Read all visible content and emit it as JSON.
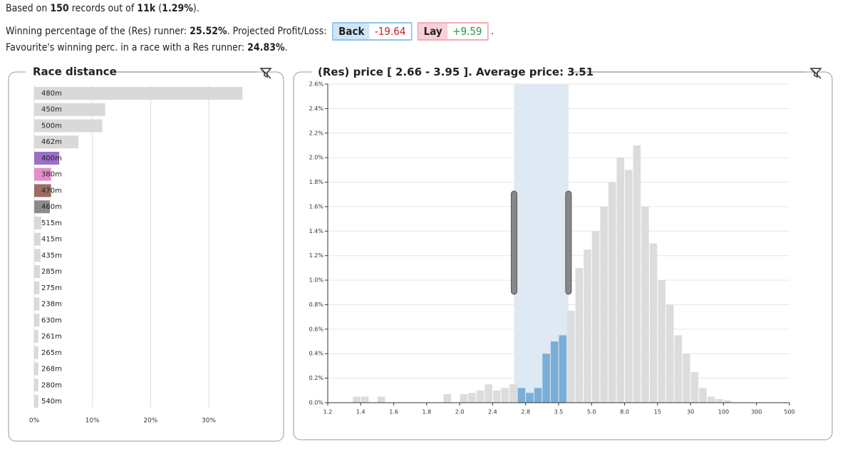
{
  "header": {
    "lines": [
      [
        {
          "text": "Based on "
        },
        {
          "text": "150",
          "bold": true
        },
        {
          "text": " records out of "
        },
        {
          "text": "11k",
          "bold": true
        },
        {
          "text": " ("
        },
        {
          "text": "1.29%",
          "bold": true
        },
        {
          "text": ")."
        }
      ],
      [
        {
          "text": "Winning percentage of the (Res) runner: "
        },
        {
          "text": "25.52%",
          "bold": true
        },
        {
          "text": ". Projected Profit/Loss: "
        }
      ],
      [
        {
          "text": "Favourite's winning perc. in a race with a Res runner: "
        },
        {
          "text": "24.83%",
          "bold": true
        },
        {
          "text": "."
        }
      ]
    ],
    "back": {
      "label": "Back",
      "value": "-19.64"
    },
    "lay": {
      "label": "Lay",
      "value": "+9.59"
    },
    "trailing": "."
  },
  "chart_data": [
    {
      "type": "hbar",
      "title": "Race distance",
      "categories": [
        "480m",
        "450m",
        "500m",
        "462m",
        "400m",
        "380m",
        "470m",
        "460m",
        "515m",
        "415m",
        "435m",
        "285m",
        "275m",
        "238m",
        "630m",
        "261m",
        "265m",
        "268m",
        "280m",
        "540m"
      ],
      "values": [
        35.8,
        12.2,
        11.7,
        7.6,
        4.3,
        2.9,
        2.9,
        2.7,
        1.2,
        1.1,
        1.1,
        1.0,
        0.9,
        0.9,
        0.9,
        0.7,
        0.7,
        0.7,
        0.7,
        0.7
      ],
      "colors": [
        "#d9d9d9",
        "#d9d9d9",
        "#d9d9d9",
        "#d9d9d9",
        "#9b6fc7",
        "#e48fc8",
        "#9e6b62",
        "#8c8c8c",
        "#d9d9d9",
        "#d9d9d9",
        "#d9d9d9",
        "#d9d9d9",
        "#d9d9d9",
        "#d9d9d9",
        "#d9d9d9",
        "#d9d9d9",
        "#d9d9d9",
        "#d9d9d9",
        "#d9d9d9",
        "#d9d9d9"
      ],
      "xlim": [
        0,
        36
      ],
      "xticks": [
        {
          "value": 0,
          "label": "0%"
        },
        {
          "value": 10,
          "label": "10%"
        },
        {
          "value": 20,
          "label": "20%"
        },
        {
          "value": 30,
          "label": "30%"
        }
      ],
      "grid": true
    },
    {
      "type": "histogram",
      "title_prefix": "(Res) price [",
      "range": [
        2.66,
        3.95
      ],
      "range_separator": "-",
      "title_mid": "]. Average price:",
      "average": 3.51,
      "bins": [
        1.2,
        1.25,
        1.3,
        1.35,
        1.4,
        1.45,
        1.5,
        1.55,
        1.6,
        1.65,
        1.7,
        1.75,
        1.8,
        1.85,
        1.9,
        1.95,
        2.0,
        2.1,
        2.2,
        2.3,
        2.4,
        2.5,
        2.6,
        2.7,
        2.8,
        2.975,
        3.15,
        3.325,
        3.5,
        3.875,
        4.25,
        4.625,
        5,
        5.75,
        6.5,
        7.25,
        8,
        9.75,
        11.5,
        13.25,
        15,
        18.75,
        22.5,
        26.25,
        30,
        47.5,
        65,
        82.5,
        100,
        150,
        200,
        250,
        300,
        350,
        400,
        450,
        500
      ],
      "values": [
        0,
        0,
        0,
        0.05,
        0.05,
        0,
        0.05,
        0,
        0,
        0,
        0,
        0,
        0,
        0,
        0.07,
        0,
        0.07,
        0.08,
        0.1,
        0.15,
        0.1,
        0.12,
        0.15,
        0.12,
        0.08,
        0.12,
        0.4,
        0.5,
        0.55,
        0.75,
        1.1,
        1.25,
        1.4,
        1.6,
        1.8,
        2.0,
        1.9,
        2.1,
        1.6,
        1.3,
        1.0,
        0.8,
        0.55,
        0.4,
        0.25,
        0.12,
        0.05,
        0.03,
        0.02,
        0,
        0,
        0,
        0,
        0,
        0,
        0
      ],
      "colors": {
        "selected": "#7aaed6",
        "other": "#dcdcdc"
      },
      "xticks": [
        1.2,
        1.4,
        1.6,
        1.8,
        {
          "value": 2,
          "label": "2.0"
        },
        2.4,
        2.8,
        3.5,
        {
          "value": 5,
          "label": "5.0"
        },
        {
          "value": 8,
          "label": "8.0"
        },
        15,
        30,
        100,
        300,
        500
      ],
      "ylim": [
        0,
        2.6
      ],
      "yticks": [
        {
          "value": 0,
          "label": "0.0%"
        },
        {
          "value": 0.2,
          "label": "0.2%"
        },
        {
          "value": 0.4,
          "label": "0.4%"
        },
        {
          "value": 0.6,
          "label": "0.6%"
        },
        {
          "value": 0.8,
          "label": "0.8%"
        },
        {
          "value": 1.0,
          "label": "1.0%"
        },
        {
          "value": 1.2,
          "label": "1.2%"
        },
        {
          "value": 1.4,
          "label": "1.4%"
        },
        {
          "value": 1.6,
          "label": "1.6%"
        },
        {
          "value": 1.8,
          "label": "1.8%"
        },
        {
          "value": 2.0,
          "label": "2.0%"
        },
        {
          "value": 2.2,
          "label": "2.2%"
        },
        {
          "value": 2.4,
          "label": "2.4%"
        },
        {
          "value": 2.6,
          "label": "2.6%"
        }
      ],
      "grid": true
    }
  ]
}
